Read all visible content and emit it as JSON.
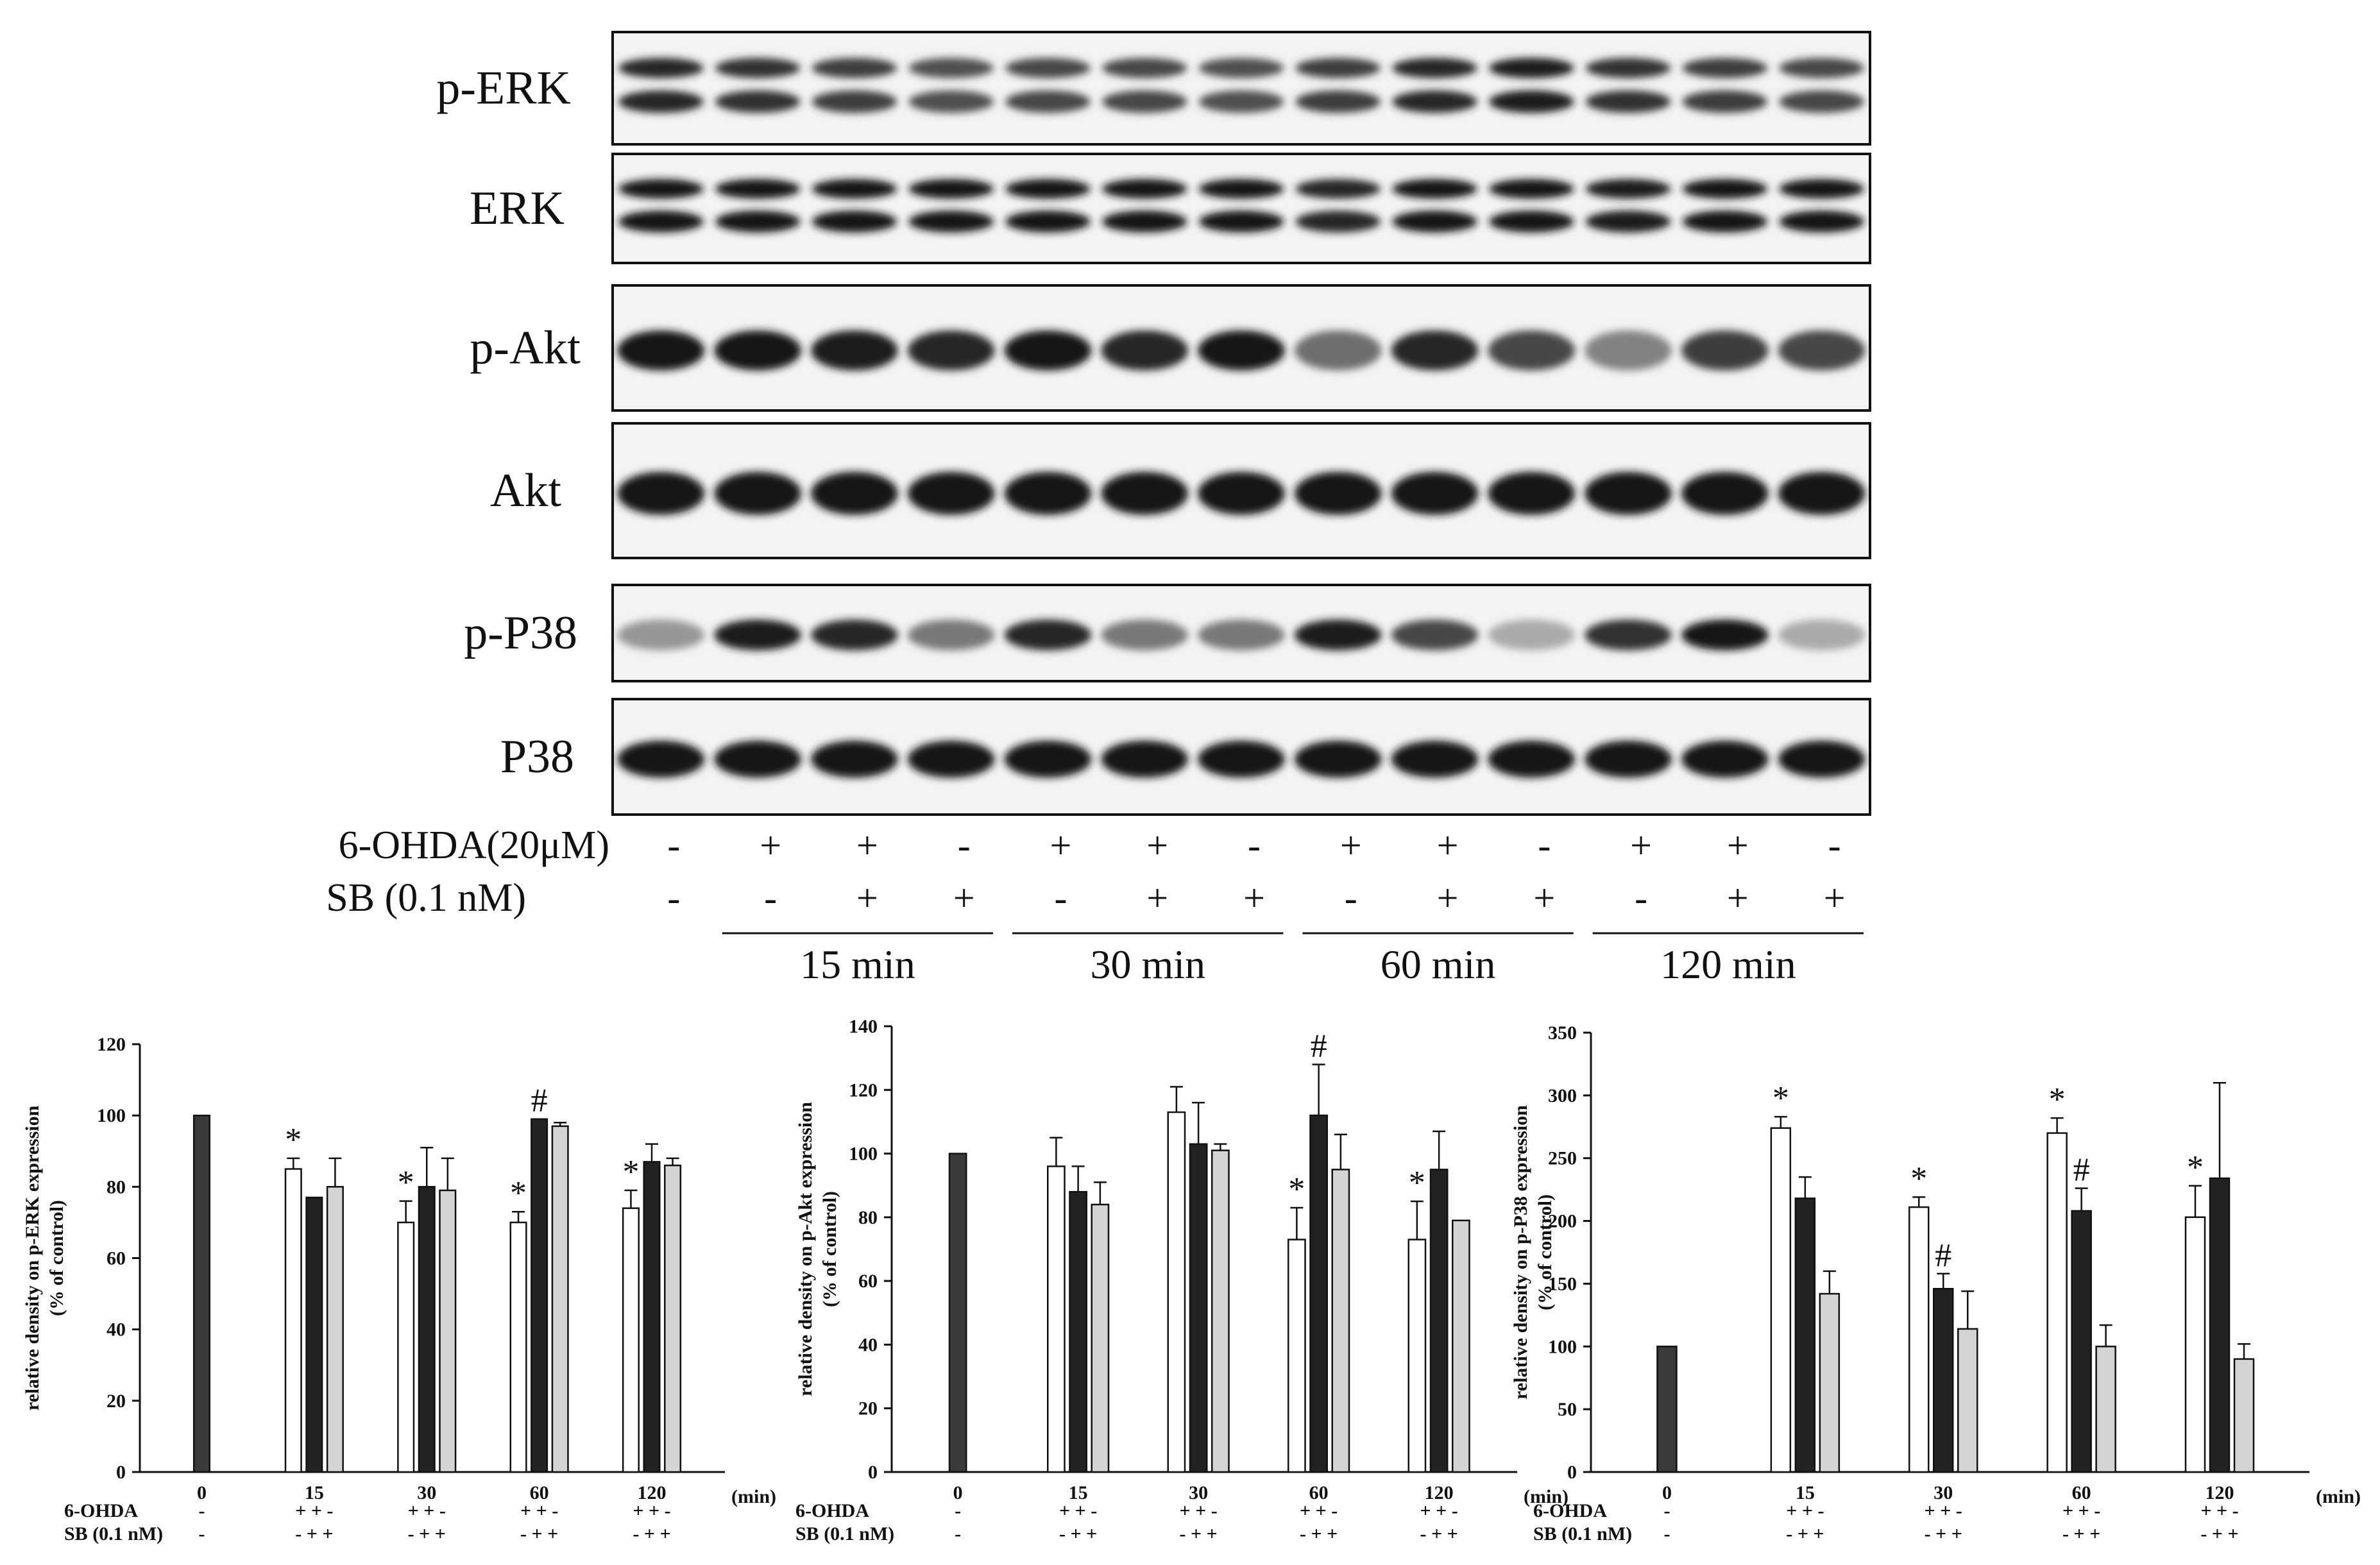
{
  "blots": [
    {
      "label": "p-ERK"
    },
    {
      "label": "ERK"
    },
    {
      "label": "p-Akt"
    },
    {
      "label": "Akt"
    },
    {
      "label": "p-P38"
    },
    {
      "label": "P38"
    }
  ],
  "blot_treatment": {
    "row1_label": "6-OHDA(20μM)",
    "row1_signs": [
      "-",
      "+",
      "+",
      "-",
      "+",
      "+",
      "-",
      "+",
      "+",
      "-",
      "+",
      "+",
      "-"
    ],
    "row2_label": "SB (0.1 nM)",
    "row2_signs": [
      "-",
      "-",
      "+",
      "+",
      "-",
      "+",
      "+",
      "-",
      "+",
      "+",
      "-",
      "+",
      "+"
    ],
    "time_labels": [
      "15 min",
      "30 min",
      "60 min",
      "120 min"
    ]
  },
  "chart_data": [
    {
      "type": "bar",
      "ylabel": "relative density on p-ERK expression (% of control)",
      "ylim": [
        0,
        120
      ],
      "yticks": [
        0,
        20,
        40,
        60,
        80,
        100,
        120
      ],
      "categories": [
        "0",
        "15",
        "30",
        "60",
        "120"
      ],
      "unit": "(min)",
      "series": [
        {
          "values": [
            100,
            null,
            null,
            null,
            null
          ],
          "errors": [
            0,
            null,
            null,
            null,
            null
          ]
        },
        {
          "values": [
            null,
            85,
            70,
            70,
            74
          ],
          "errors": [
            null,
            3,
            6,
            3,
            5
          ]
        },
        {
          "values": [
            null,
            77,
            80,
            99,
            87
          ],
          "errors": [
            null,
            0,
            11,
            0,
            5
          ]
        },
        {
          "values": [
            null,
            80,
            79,
            97,
            86
          ],
          "errors": [
            null,
            8,
            9,
            1,
            2
          ]
        }
      ],
      "annotations": [
        {
          "category": "15",
          "series": 1,
          "mark": "*"
        },
        {
          "category": "30",
          "series": 1,
          "mark": "*"
        },
        {
          "category": "60",
          "series": 1,
          "mark": "*"
        },
        {
          "category": "60",
          "series": 2,
          "mark": "#"
        },
        {
          "category": "120",
          "series": 1,
          "mark": "*"
        }
      ],
      "conditions": {
        "row1_label": "6-OHDA",
        "row1_signs": [
          "-",
          "+ + -",
          "+ + -",
          "+ + -",
          "+ + -"
        ],
        "row2_label": "SB (0.1 nM)",
        "row2_signs": [
          "-",
          "- + +",
          "- + +",
          "- + +",
          "- + +"
        ]
      }
    },
    {
      "type": "bar",
      "ylabel": "relative density on p-Akt expression (% of control)",
      "ylim": [
        0,
        140
      ],
      "yticks": [
        0,
        20,
        40,
        60,
        80,
        100,
        120,
        140
      ],
      "categories": [
        "0",
        "15",
        "30",
        "60",
        "120"
      ],
      "unit": "(min)",
      "series": [
        {
          "values": [
            100,
            null,
            null,
            null,
            null
          ],
          "errors": [
            0,
            null,
            null,
            null,
            null
          ]
        },
        {
          "values": [
            null,
            96,
            113,
            73,
            73
          ],
          "errors": [
            null,
            9,
            8,
            10,
            12
          ]
        },
        {
          "values": [
            null,
            88,
            103,
            112,
            95
          ],
          "errors": [
            null,
            8,
            13,
            16,
            12
          ]
        },
        {
          "values": [
            null,
            84,
            101,
            95,
            79
          ],
          "errors": [
            null,
            7,
            2,
            11,
            0
          ]
        }
      ],
      "annotations": [
        {
          "category": "60",
          "series": 1,
          "mark": "*"
        },
        {
          "category": "60",
          "series": 2,
          "mark": "#"
        },
        {
          "category": "120",
          "series": 1,
          "mark": "*"
        }
      ],
      "conditions": {
        "row1_label": "6-OHDA",
        "row1_signs": [
          "-",
          "+ + -",
          "+ + -",
          "+ + -",
          "+ + -"
        ],
        "row2_label": "SB (0.1 nM)",
        "row2_signs": [
          "-",
          "- + +",
          "- + +",
          "- + +",
          "- + +"
        ]
      }
    },
    {
      "type": "bar",
      "ylabel": "relative density on p-P38 expression (% of control)",
      "ylim": [
        0,
        350
      ],
      "yticks": [
        0,
        50,
        100,
        150,
        200,
        250,
        300,
        350
      ],
      "categories": [
        "0",
        "15",
        "30",
        "60",
        "120"
      ],
      "unit": "(min)",
      "series": [
        {
          "values": [
            100,
            null,
            null,
            null,
            null
          ],
          "errors": [
            0,
            null,
            null,
            null,
            null
          ]
        },
        {
          "values": [
            null,
            274,
            211,
            270,
            203
          ],
          "errors": [
            null,
            9,
            8,
            12,
            25
          ]
        },
        {
          "values": [
            null,
            218,
            146,
            208,
            234
          ],
          "errors": [
            null,
            17,
            12,
            18,
            76
          ]
        },
        {
          "values": [
            null,
            142,
            114,
            100,
            90
          ],
          "errors": [
            null,
            18,
            30,
            17,
            12
          ]
        }
      ],
      "annotations": [
        {
          "category": "15",
          "series": 1,
          "mark": "*"
        },
        {
          "category": "30",
          "series": 1,
          "mark": "*"
        },
        {
          "category": "30",
          "series": 2,
          "mark": "#"
        },
        {
          "category": "60",
          "series": 1,
          "mark": "*"
        },
        {
          "category": "60",
          "series": 2,
          "mark": "#"
        },
        {
          "category": "120",
          "series": 1,
          "mark": "*"
        }
      ],
      "conditions": {
        "row1_label": "6-OHDA",
        "row1_signs": [
          "-",
          "+ + -",
          "+ + -",
          "+ + -",
          "+ + -"
        ],
        "row2_label": "SB (0.1 nM)",
        "row2_signs": [
          "-",
          "- + +",
          "- + +",
          "- + +",
          "- + +"
        ]
      }
    }
  ]
}
